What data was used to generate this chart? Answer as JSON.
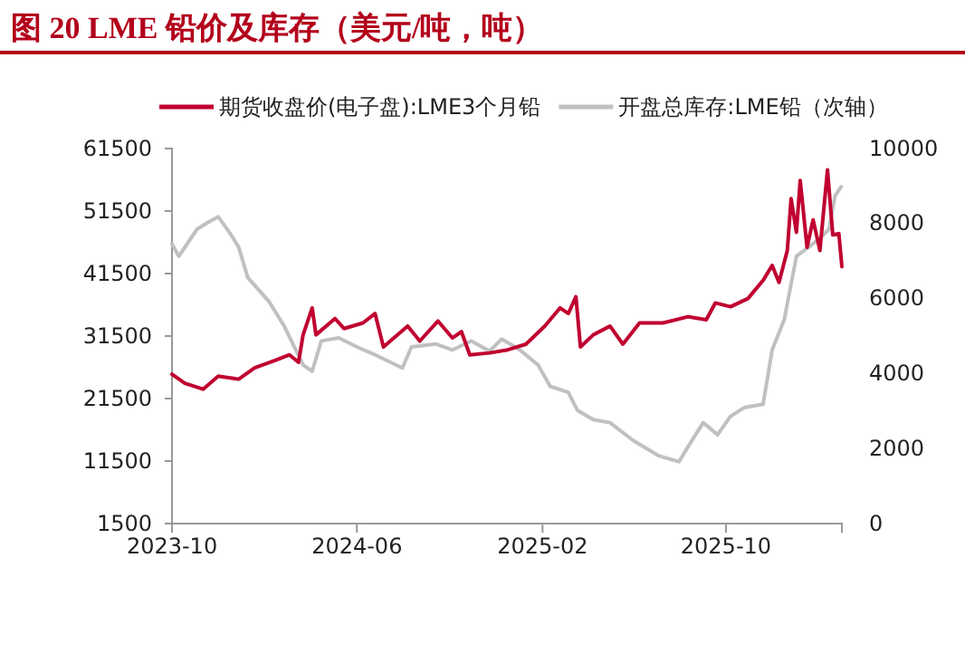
{
  "chart_data": {
    "type": "line",
    "title": "图 20 LME 铅价及库存（美元/吨，吨）",
    "legend": "top",
    "grid": false,
    "xlim": [
      "2023-10-01",
      "2026-03-03"
    ],
    "xticks": [
      "2023-10",
      "2024-06",
      "2025-02",
      "2025-10"
    ],
    "ylim": [
      1500,
      61500
    ],
    "yticks": [
      1500,
      11500,
      21500,
      31500,
      41500,
      51500,
      61500
    ],
    "y2lim": [
      0,
      10000
    ],
    "y2ticks": [
      0,
      2000,
      4000,
      6000,
      8000,
      10000
    ],
    "series": [
      {
        "name": "期货收盘价(电子盘):LME3个月铅",
        "color": "#c00030",
        "x": [
          "2023-10-01",
          "2023-10-18",
          "2023-11-11",
          "2023-12-01",
          "2023-12-28",
          "2024-01-18",
          "2024-02-18",
          "2024-03-04",
          "2024-03-16",
          "2024-03-22",
          "2024-04-03",
          "2024-04-08",
          "2024-05-03",
          "2024-05-15",
          "2024-06-09",
          "2024-06-25",
          "2024-07-06",
          "2024-08-07",
          "2024-08-23",
          "2024-09-16",
          "2024-10-05",
          "2024-10-17",
          "2024-10-28",
          "2024-11-23",
          "2024-12-17",
          "2025-01-10",
          "2025-02-04",
          "2025-02-24",
          "2025-03-07",
          "2025-03-17",
          "2025-03-23",
          "2025-04-09",
          "2025-05-01",
          "2025-05-18",
          "2025-06-09",
          "2025-07-10",
          "2025-08-12",
          "2025-09-05",
          "2025-09-17",
          "2025-10-07",
          "2025-10-30",
          "2025-11-19",
          "2025-12-01",
          "2025-12-10",
          "2025-12-21",
          "2025-12-26",
          "2026-01-02",
          "2026-01-07",
          "2026-01-16",
          "2026-01-24",
          "2026-02-02",
          "2026-02-12",
          "2026-02-19",
          "2026-02-27",
          "2026-03-03"
        ],
        "values": [
          25400,
          23950,
          23000,
          25100,
          24600,
          26400,
          27800,
          28500,
          27300,
          31700,
          36000,
          31700,
          34300,
          32700,
          33600,
          35100,
          29750,
          33100,
          30700,
          33900,
          31200,
          32200,
          28500,
          28800,
          29300,
          30200,
          33100,
          36000,
          35100,
          37800,
          29750,
          31700,
          33100,
          30200,
          33600,
          33600,
          34600,
          34100,
          36800,
          36200,
          37500,
          40400,
          42800,
          40100,
          45200,
          53500,
          48100,
          56400,
          45700,
          50100,
          45200,
          58100,
          47700,
          47900,
          42600
        ]
      },
      {
        "name": "开盘总库存:LME铅（次轴）",
        "color": "#c0c0c0",
        "axis": "y2",
        "x": [
          "2023-10-01",
          "2023-10-10",
          "2023-11-03",
          "2023-11-15",
          "2023-12-01",
          "2023-12-17",
          "2023-12-28",
          "2024-01-09",
          "2024-02-06",
          "2024-02-26",
          "2024-03-22",
          "2024-04-03",
          "2024-04-15",
          "2024-05-08",
          "2024-06-01",
          "2024-06-25",
          "2024-07-31",
          "2024-08-12",
          "2024-09-13",
          "2024-10-05",
          "2024-10-30",
          "2024-11-23",
          "2024-12-09",
          "2025-01-02",
          "2025-01-26",
          "2025-02-11",
          "2025-03-07",
          "2025-03-19",
          "2025-04-09",
          "2025-05-01",
          "2025-06-01",
          "2025-07-04",
          "2025-07-31",
          "2025-08-12",
          "2025-09-01",
          "2025-09-20",
          "2025-10-07",
          "2025-10-26",
          "2025-11-19",
          "2025-12-01",
          "2025-12-17",
          "2026-01-02",
          "2026-01-18",
          "2026-02-02",
          "2026-02-14",
          "2026-02-22",
          "2026-03-02"
        ],
        "values": [
          7450,
          7130,
          7850,
          8000,
          8180,
          7730,
          7370,
          6560,
          5920,
          5270,
          4230,
          4060,
          4870,
          4950,
          4710,
          4500,
          4150,
          4710,
          4790,
          4630,
          4870,
          4600,
          4920,
          4630,
          4230,
          3660,
          3500,
          3020,
          2770,
          2690,
          2210,
          1810,
          1650,
          2050,
          2690,
          2370,
          2860,
          3100,
          3180,
          4630,
          5440,
          7130,
          7370,
          7610,
          7850,
          8740,
          8980
        ]
      }
    ]
  }
}
